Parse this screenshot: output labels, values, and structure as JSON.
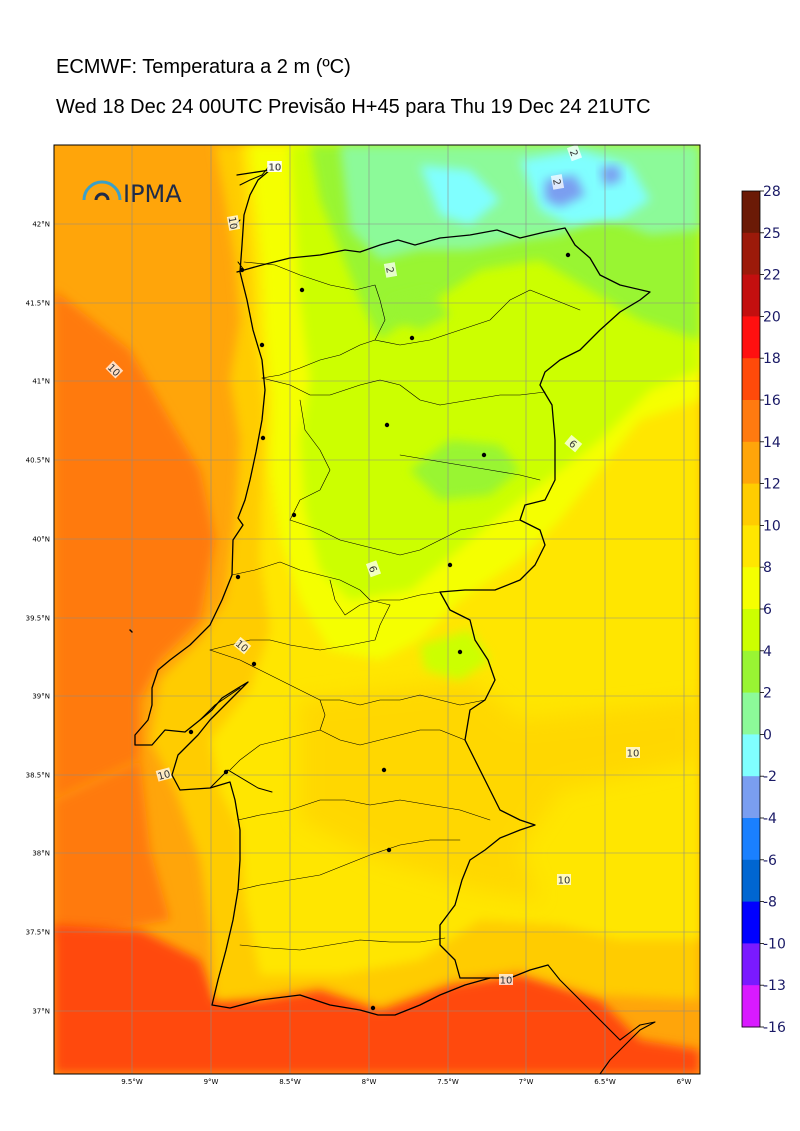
{
  "header": {
    "title": "ECMWF: Temperatura a 2 m (ºC)",
    "subtitle": "Wed 18 Dec 24 00UTC Previsão H+45 para Thu 19 Dec 24 21UTC"
  },
  "logo": {
    "text": "IPMA"
  },
  "map": {
    "lon_range": [
      -10.0,
      -5.9
    ],
    "lat_range": [
      36.6,
      43.55
    ],
    "lat_ticks": [
      "42°N",
      "41.5°N",
      "41°N",
      "40.5°N",
      "40°N",
      "39.5°N",
      "39°N",
      "38.5°N",
      "38°N",
      "37.5°N",
      "37°N"
    ],
    "lon_ticks": [
      "9.5°W",
      "9°W",
      "8.5°W",
      "8°W",
      "7.5°W",
      "7°W",
      "6.5°W",
      "6°W"
    ],
    "grid": true
  },
  "colorbar": {
    "labels": [
      "28",
      "25",
      "22",
      "20",
      "18",
      "16",
      "14",
      "12",
      "10",
      "8",
      "6",
      "4",
      "2",
      "0",
      "-2",
      "-4",
      "-6",
      "-8",
      "-10",
      "-13",
      "-16"
    ],
    "colors": [
      "#6b1a06",
      "#9c1a0a",
      "#c30f0f",
      "#ff1010",
      "#ff4a0a",
      "#ff7a10",
      "#ffa50a",
      "#ffcc00",
      "#ffe600",
      "#f5ff00",
      "#ccff00",
      "#99f533",
      "#8cfa99",
      "#80ffff",
      "#7a9ef0",
      "#1a80ff",
      "#0066d1",
      "#0000ff",
      "#7a1aff",
      "#d91aff"
    ]
  },
  "contour_labels": [
    {
      "text": "10"
    },
    {
      "text": "10"
    },
    {
      "text": "10"
    },
    {
      "text": "10"
    },
    {
      "text": "10"
    },
    {
      "text": "6"
    },
    {
      "text": "6"
    },
    {
      "text": "2"
    },
    {
      "text": "2"
    },
    {
      "text": "2"
    },
    {
      "text": "10"
    },
    {
      "text": "10"
    },
    {
      "text": "10"
    },
    {
      "text": "10"
    }
  ]
}
